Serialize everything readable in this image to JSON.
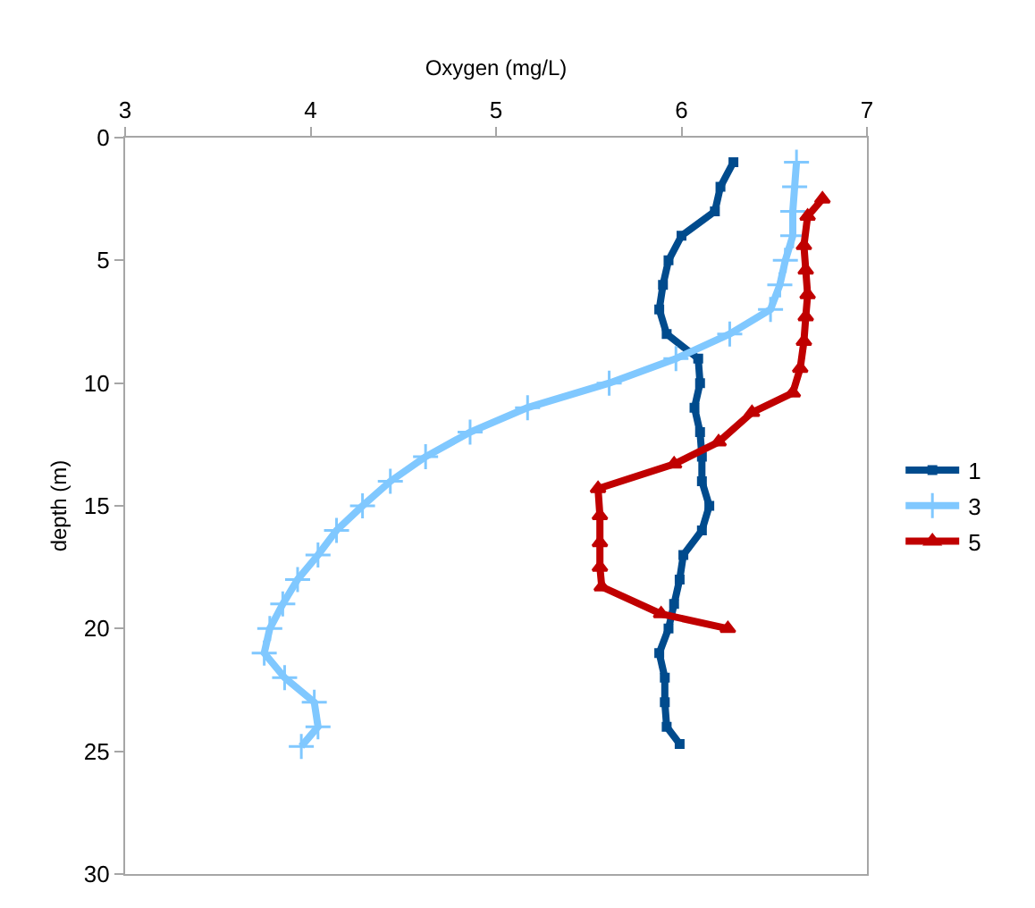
{
  "chart_data": {
    "type": "line",
    "xlabel": "Oxygen (mg/L)",
    "ylabel": "depth (m)",
    "xlim": [
      3,
      7
    ],
    "xticks": [
      3,
      4,
      5,
      6,
      7
    ],
    "ylim": [
      30,
      0
    ],
    "yticks": [
      0,
      5,
      10,
      15,
      20,
      25,
      30
    ],
    "legend": "right",
    "line_style": "solid",
    "series": [
      {
        "name": "1",
        "color": "#004b8d",
        "marker": "square",
        "x": [
          6.28,
          6.21,
          6.18,
          6.0,
          5.93,
          5.9,
          5.88,
          5.92,
          6.09,
          6.1,
          6.07,
          6.1,
          6.11,
          6.11,
          6.15,
          6.11,
          6.01,
          5.99,
          5.96,
          5.93,
          5.88,
          5.91,
          5.91,
          5.92,
          5.99
        ],
        "values": [
          1,
          2,
          3,
          4,
          5,
          6,
          7,
          8,
          9,
          10,
          11,
          12,
          13,
          14,
          15,
          16,
          17,
          18,
          19,
          20,
          21,
          22,
          23,
          24,
          24.7
        ]
      },
      {
        "name": "3",
        "color": "#80c8ff",
        "marker": "cross",
        "x": [
          6.62,
          6.61,
          6.6,
          6.6,
          6.56,
          6.53,
          6.48,
          6.26,
          5.97,
          5.61,
          5.17,
          4.86,
          4.62,
          4.43,
          4.28,
          4.14,
          4.04,
          3.93,
          3.85,
          3.78,
          3.75,
          3.86,
          4.02,
          4.04,
          3.95
        ],
        "values": [
          1,
          2,
          3,
          4,
          5,
          6,
          7,
          8,
          9,
          10,
          11,
          12,
          13,
          14,
          15,
          16,
          17,
          18,
          19,
          20,
          21,
          22,
          23,
          24,
          24.8
        ]
      },
      {
        "name": "5",
        "color": "#c00000",
        "marker": "triangle",
        "x": [
          6.76,
          6.68,
          6.66,
          6.67,
          6.68,
          6.67,
          6.66,
          6.64,
          6.6,
          6.38,
          6.2,
          5.96,
          5.55,
          5.56,
          5.56,
          5.56,
          5.57,
          5.89,
          6.25
        ],
        "values": [
          2.5,
          3.2,
          4.4,
          5.4,
          6.4,
          7.3,
          8.3,
          9.4,
          10.4,
          11.2,
          12.4,
          13.3,
          14.3,
          15.4,
          16.5,
          17.5,
          18.3,
          19.4,
          20.0
        ]
      }
    ]
  }
}
